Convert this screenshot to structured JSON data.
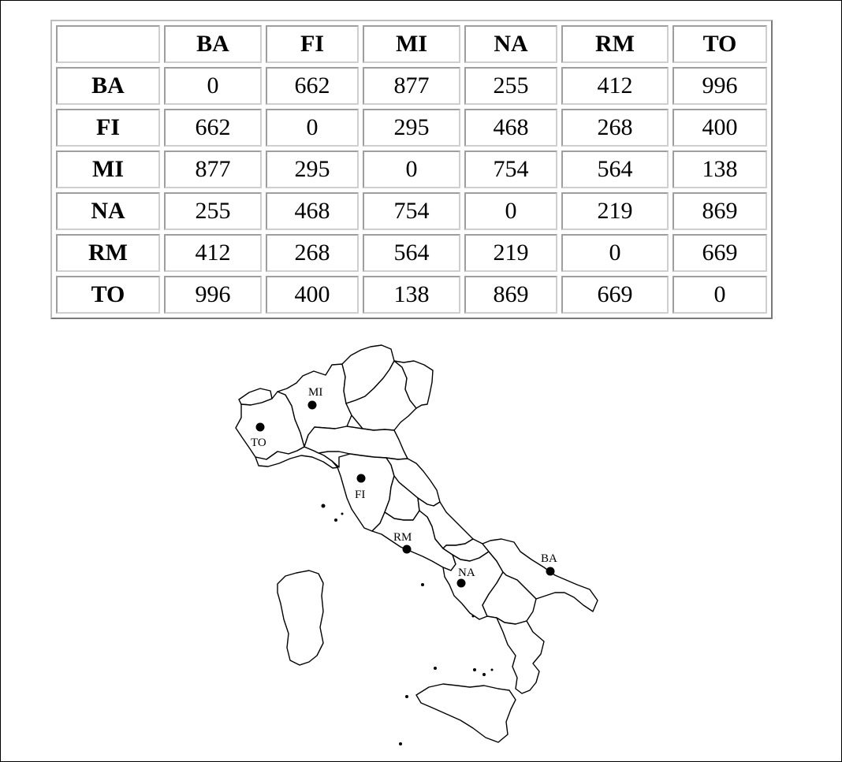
{
  "distance_table": {
    "corner": "",
    "columns": [
      "BA",
      "FI",
      "MI",
      "NA",
      "RM",
      "TO"
    ],
    "rows": [
      {
        "label": "BA",
        "values": [
          "0",
          "662",
          "877",
          "255",
          "412",
          "996"
        ]
      },
      {
        "label": "FI",
        "values": [
          "662",
          "0",
          "295",
          "468",
          "268",
          "400"
        ]
      },
      {
        "label": "MI",
        "values": [
          "877",
          "295",
          "0",
          "754",
          "564",
          "138"
        ]
      },
      {
        "label": "NA",
        "values": [
          "255",
          "468",
          "754",
          "0",
          "219",
          "869"
        ]
      },
      {
        "label": "RM",
        "values": [
          "412",
          "268",
          "564",
          "219",
          "0",
          "669"
        ]
      },
      {
        "label": "TO",
        "values": [
          "996",
          "400",
          "138",
          "869",
          "669",
          "0"
        ]
      }
    ]
  },
  "map": {
    "cities": [
      {
        "code": "MI"
      },
      {
        "code": "TO"
      },
      {
        "code": "FI"
      },
      {
        "code": "RM"
      },
      {
        "code": "NA"
      },
      {
        "code": "BA"
      }
    ]
  }
}
